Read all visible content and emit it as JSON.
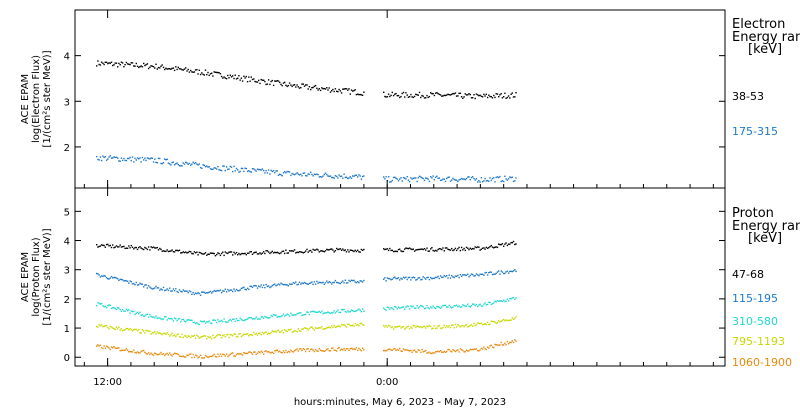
{
  "chart_data": [
    {
      "type": "scatter",
      "panel": "electron",
      "ylabel": [
        "ACE EPAM",
        "log(Electron Flux)",
        "[1/(cm²s ster MeV)]"
      ],
      "legend_title": [
        "Electron",
        "Energy ranges",
        "[keV]"
      ],
      "ylim": [
        1.1,
        5.0
      ],
      "yticks": [
        2,
        3,
        4
      ],
      "series": [
        {
          "name": "38-53",
          "color": "#000000",
          "x": [
            -12.5,
            -10,
            -8,
            -6,
            -4,
            -2,
            -1.0,
            0,
            2,
            4,
            5.5
          ],
          "y": [
            3.85,
            3.78,
            3.65,
            3.5,
            3.35,
            3.25,
            3.2,
            3.15,
            3.15,
            3.12,
            3.15
          ]
        },
        {
          "name": "175-315",
          "color": "#1f78c8",
          "x": [
            -12.5,
            -10,
            -8,
            -6,
            -4,
            -2,
            -1.0,
            0,
            2,
            4,
            5.5
          ],
          "y": [
            1.78,
            1.72,
            1.6,
            1.5,
            1.42,
            1.38,
            1.35,
            1.3,
            1.32,
            1.3,
            1.32
          ]
        }
      ]
    },
    {
      "type": "scatter",
      "panel": "proton",
      "ylabel": [
        "ACE EPAM",
        "log(Proton Flux)",
        "[1/(cm²s ster MeV)]"
      ],
      "legend_title": [
        "Proton",
        "Energy ranges",
        "[keV]"
      ],
      "ylim": [
        -0.3,
        5.8
      ],
      "yticks": [
        0,
        1,
        2,
        3,
        4,
        5
      ],
      "series": [
        {
          "name": "47-68",
          "color": "#000000",
          "x": [
            -12.5,
            -10,
            -8,
            -6,
            -4,
            -2,
            -1.0,
            0,
            2,
            4,
            5.5
          ],
          "y": [
            3.85,
            3.75,
            3.55,
            3.6,
            3.65,
            3.7,
            3.68,
            3.7,
            3.72,
            3.75,
            3.95
          ]
        },
        {
          "name": "115-195",
          "color": "#1f78c8",
          "x": [
            -12.5,
            -10,
            -8,
            -6,
            -4,
            -2,
            -1.0,
            0,
            2,
            4,
            5.5
          ],
          "y": [
            2.85,
            2.4,
            2.2,
            2.4,
            2.55,
            2.6,
            2.62,
            2.7,
            2.75,
            2.85,
            3.0
          ]
        },
        {
          "name": "310-580",
          "color": "#20d8d0",
          "x": [
            -12.5,
            -10,
            -8,
            -6,
            -4,
            -2,
            -1.0,
            0,
            2,
            4,
            5.5
          ],
          "y": [
            1.85,
            1.4,
            1.2,
            1.35,
            1.5,
            1.6,
            1.65,
            1.7,
            1.75,
            1.8,
            2.05
          ]
        },
        {
          "name": "795-1193",
          "color": "#c8d800",
          "x": [
            -12.5,
            -10,
            -8,
            -6,
            -4,
            -2,
            -1.0,
            0,
            2,
            4,
            5.5
          ],
          "y": [
            1.1,
            0.85,
            0.7,
            0.8,
            0.95,
            1.1,
            1.15,
            1.05,
            1.05,
            1.15,
            1.35
          ]
        },
        {
          "name": "1060-1900",
          "color": "#e88a10",
          "x": [
            -12.5,
            -10,
            -8,
            -6,
            -4,
            -2,
            -1.0,
            0,
            2,
            4,
            5.5
          ],
          "y": [
            0.4,
            0.15,
            0.05,
            0.15,
            0.25,
            0.3,
            0.3,
            0.3,
            0.2,
            0.3,
            0.6
          ]
        }
      ]
    }
  ],
  "x_axis": {
    "label": "hours:minutes, May  6, 2023 - May  7, 2023",
    "ticks": [
      {
        "x": -12,
        "label": "12:00"
      },
      {
        "x": 0,
        "label": "0:00"
      }
    ],
    "xlim": [
      -13.4,
      14.5
    ]
  }
}
